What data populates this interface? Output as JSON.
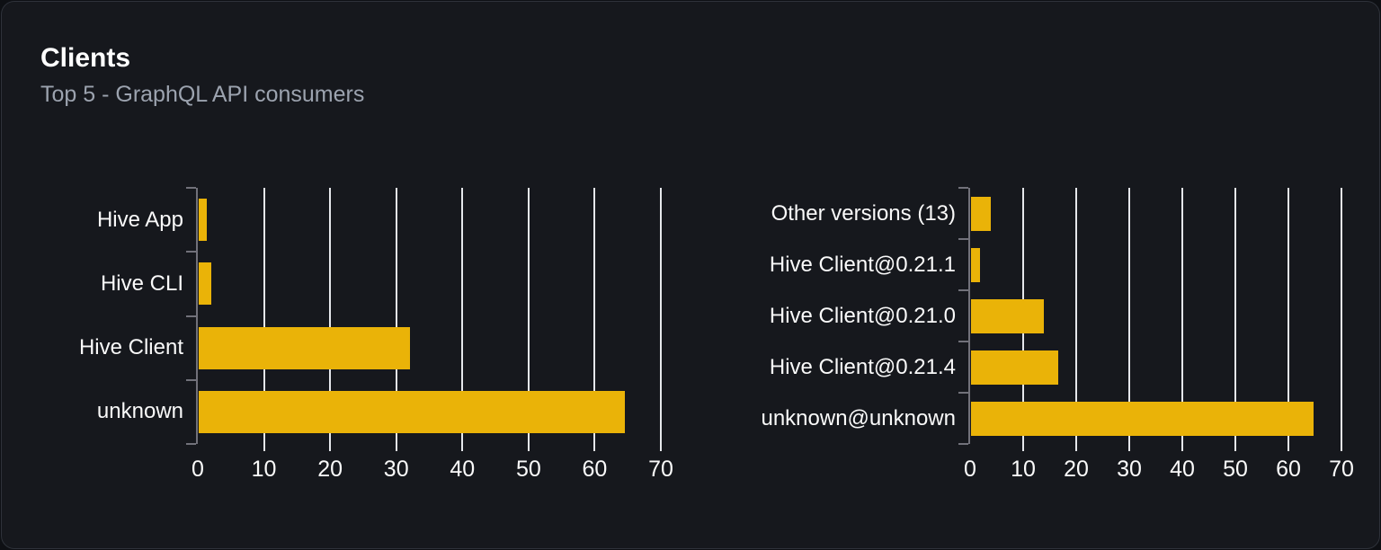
{
  "card": {
    "title": "Clients",
    "subtitle": "Top 5 - GraphQL API consumers"
  },
  "colors": {
    "bar": "#eab308",
    "gridline": "#e5e7eb",
    "axis": "#71717a",
    "card_bg": "#16181d",
    "card_border": "#2e323a",
    "page_bg": "#0e1014",
    "title_text": "#ffffff",
    "subtitle_text": "#9ca3af",
    "label_text": "#fafafa"
  },
  "chart_data": [
    {
      "type": "bar",
      "orientation": "horizontal",
      "title": "",
      "categories": [
        "Hive App",
        "Hive CLI",
        "Hive Client",
        "unknown"
      ],
      "values": [
        1.2,
        1.9,
        32,
        64.4
      ],
      "xlim": [
        0,
        70
      ],
      "xticks": [
        0,
        10,
        20,
        30,
        40,
        50,
        60,
        70
      ],
      "grid": true,
      "legend": false
    },
    {
      "type": "bar",
      "orientation": "horizontal",
      "title": "",
      "categories": [
        "Other versions (13)",
        "Hive Client@0.21.1",
        "Hive Client@0.21.0",
        "Hive Client@0.21.4",
        "unknown@unknown"
      ],
      "values": [
        3.7,
        1.7,
        13.7,
        16.4,
        64.6
      ],
      "xlim": [
        0,
        70
      ],
      "xticks": [
        0,
        10,
        20,
        30,
        40,
        50,
        60,
        70
      ],
      "grid": true,
      "legend": false
    }
  ]
}
